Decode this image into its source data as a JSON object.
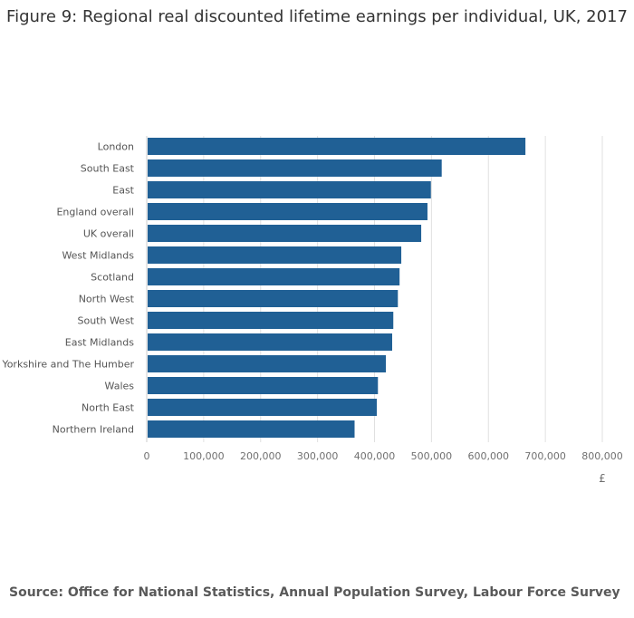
{
  "chart_data": {
    "type": "bar",
    "orientation": "horizontal",
    "title": "Figure 9: Regional real discounted lifetime earnings per individual, UK, 2017",
    "categories": [
      "London",
      "South East",
      "East",
      "England overall",
      "UK overall",
      "West Midlands",
      "Scotland",
      "North West",
      "South West",
      "East Midlands",
      "Yorkshire and The Humber",
      "Wales",
      "North East",
      "Northern Ireland"
    ],
    "values": [
      665000,
      518000,
      499000,
      493000,
      482000,
      447000,
      444000,
      441000,
      433000,
      431000,
      420000,
      406000,
      404000,
      365000
    ],
    "xlabel": "£",
    "xlim": [
      0,
      800000
    ],
    "xticks": [
      "0",
      "100,000",
      "200,000",
      "300,000",
      "400,000",
      "500,000",
      "600,000",
      "700,000",
      "800,000"
    ],
    "grid": true,
    "bar_color": "#206095"
  },
  "source": "Source: Office for National Statistics, Annual Population Survey, Labour Force Survey"
}
